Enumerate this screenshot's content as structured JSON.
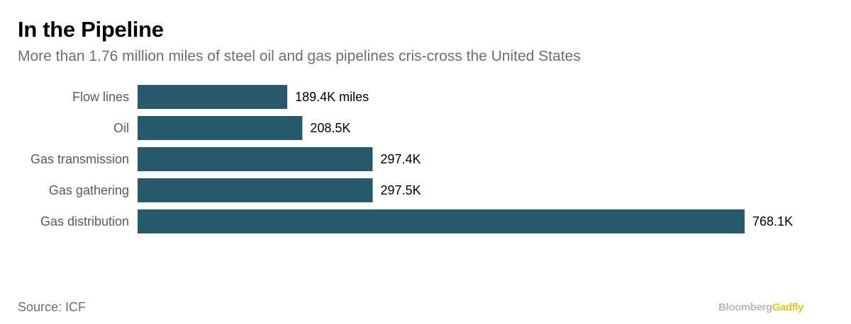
{
  "header": {
    "title": "In the Pipeline",
    "subtitle": "More than 1.76 million miles of steel oil and gas pipelines cris-cross the United States"
  },
  "footer": {
    "source": "Source: ICF",
    "brand_part1": "Bloomberg",
    "brand_part2": "Gadfly"
  },
  "colors": {
    "bar": "#265a6b",
    "brand_gray": "#b9b9b9",
    "brand_yellow": "#e3c51f"
  },
  "chart_data": {
    "type": "bar",
    "orientation": "horizontal",
    "title": "In the Pipeline",
    "subtitle": "More than 1.76 million miles of steel oil and gas pipelines cris-cross the United States",
    "categories": [
      "Flow lines",
      "Oil",
      "Gas transmission",
      "Gas gathering",
      "Gas distribution"
    ],
    "values": [
      189.4,
      208.5,
      297.4,
      297.5,
      768.1
    ],
    "value_labels": [
      "189.4K miles",
      "208.5K",
      "297.4K",
      "297.5K",
      "768.1K"
    ],
    "unit": "thousand miles",
    "xlim": [
      0,
      768.1
    ],
    "grid": false,
    "legend": "none"
  }
}
